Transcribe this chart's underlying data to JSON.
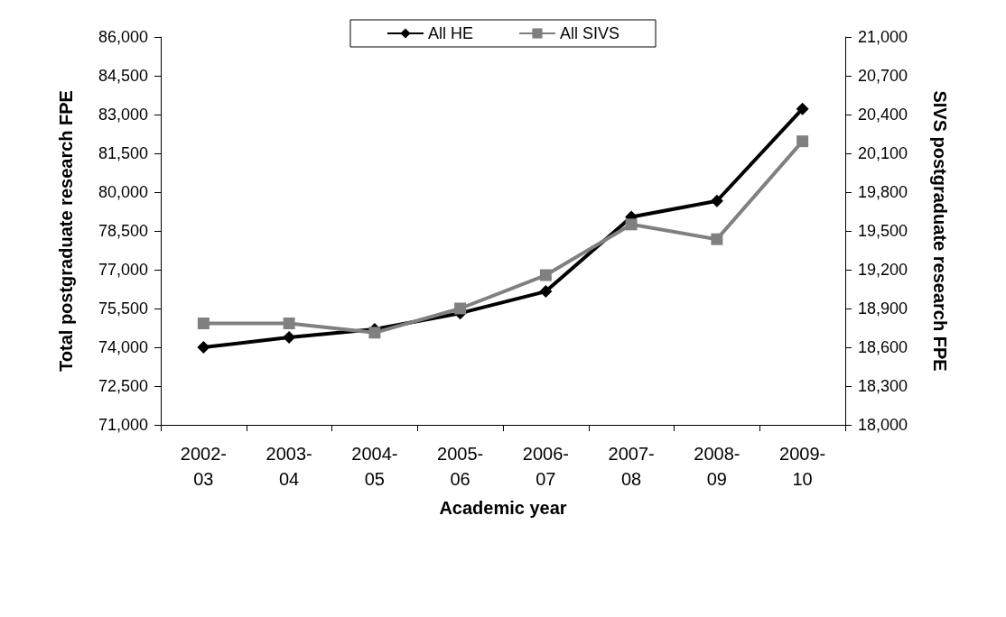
{
  "chart_data": {
    "type": "line",
    "xlabel": "Academic year",
    "ylabel": "Total postgraduate research FPE",
    "y2label": "SIVS postgraduate research FPE",
    "categories": [
      "2002-03",
      "2003-04",
      "2004-05",
      "2005-06",
      "2006-07",
      "2007-08",
      "2008-09",
      "2009-10"
    ],
    "series": [
      {
        "name": "All HE",
        "color": "#000000",
        "marker": "diamond",
        "values": [
          74000,
          74380,
          74700,
          75320,
          76160,
          79040,
          79660,
          83220
        ]
      },
      {
        "name": "All SIVS",
        "color": "#808080",
        "marker": "square",
        "axis": "y2",
        "values": [
          18785,
          18785,
          18713,
          18900,
          19158,
          19550,
          19436,
          20193
        ]
      }
    ],
    "ylim": [
      71000,
      86000
    ],
    "yticks": [
      {
        "value": 71000,
        "label": "71,000"
      },
      {
        "value": 72500,
        "label": "72,500"
      },
      {
        "value": 74000,
        "label": "74,000"
      },
      {
        "value": 75500,
        "label": "75,500"
      },
      {
        "value": 77000,
        "label": "77,000"
      },
      {
        "value": 78500,
        "label": "78,500"
      },
      {
        "value": 80000,
        "label": "80,000"
      },
      {
        "value": 81500,
        "label": "81,500"
      },
      {
        "value": 83000,
        "label": "83,000"
      },
      {
        "value": 84500,
        "label": "84,500"
      },
      {
        "value": 86000,
        "label": "86,000"
      }
    ],
    "y2lim": [
      18000,
      21000
    ],
    "y2ticks": [
      {
        "value": 18000,
        "label": "18,000"
      },
      {
        "value": 18300,
        "label": "18,300"
      },
      {
        "value": 18600,
        "label": "18,600"
      },
      {
        "value": 18900,
        "label": "18,900"
      },
      {
        "value": 19200,
        "label": "19,200"
      },
      {
        "value": 19500,
        "label": "19,500"
      },
      {
        "value": 19800,
        "label": "19,800"
      },
      {
        "value": 20100,
        "label": "20,100"
      },
      {
        "value": 20400,
        "label": "20,400"
      },
      {
        "value": 20700,
        "label": "20,700"
      },
      {
        "value": 21000,
        "label": "21,000"
      }
    ],
    "grid": false,
    "legend": "top",
    "line_style": "solid"
  }
}
